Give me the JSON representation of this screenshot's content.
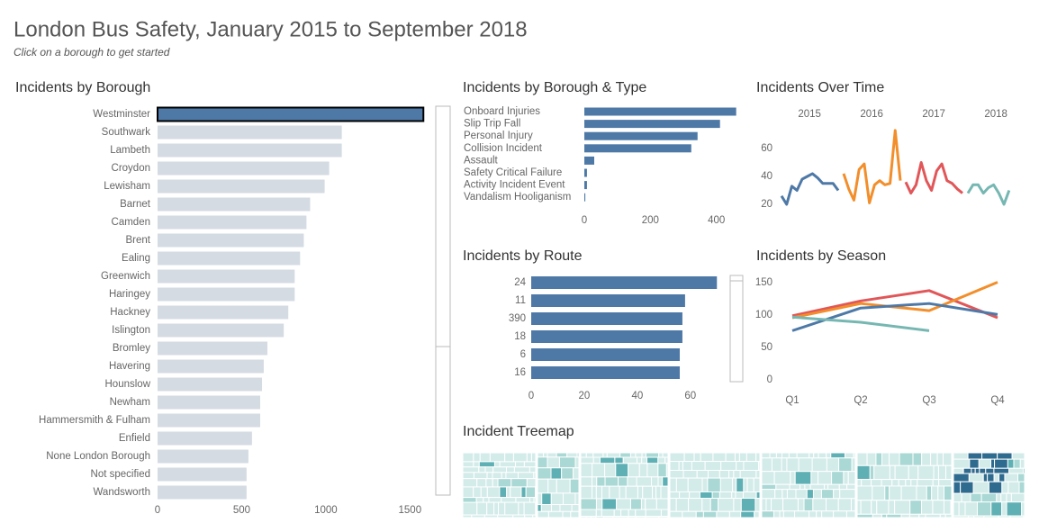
{
  "title": "London Bus Safety, January 2015 to September 2018",
  "subtitle": "Click on a borough to get started",
  "chart_data": [
    {
      "type": "hbar",
      "title": "Incidents by Borough",
      "categories": [
        "Westminster",
        "Southwark",
        "Lambeth",
        "Croydon",
        "Lewisham",
        "Barnet",
        "Camden",
        "Brent",
        "Ealing",
        "Greenwich",
        "Haringey",
        "Hackney",
        "Islington",
        "Bromley",
        "Havering",
        "Hounslow",
        "Newham",
        "Hammersmith & Fulham",
        "Enfield",
        "None London Borough",
        "Not specified",
        "Wandsworth"
      ],
      "values": [
        1580,
        1095,
        1095,
        1020,
        993,
        907,
        885,
        869,
        847,
        815,
        815,
        777,
        750,
        653,
        631,
        621,
        610,
        610,
        561,
        540,
        529,
        529
      ],
      "colors": [
        "#4e79a7",
        "#d4dbe3",
        "#d4dbe3",
        "#d4dbe3",
        "#d4dbe3",
        "#d4dbe3",
        "#d4dbe3",
        "#d4dbe3",
        "#d4dbe3",
        "#d4dbe3",
        "#d4dbe3",
        "#d4dbe3",
        "#d4dbe3",
        "#d4dbe3",
        "#d4dbe3",
        "#d4dbe3",
        "#d4dbe3",
        "#d4dbe3",
        "#d4dbe3",
        "#d4dbe3",
        "#d4dbe3",
        "#d4dbe3"
      ],
      "xlim": [
        0,
        1600
      ],
      "xticks": [
        0,
        500,
        1000,
        1500
      ]
    },
    {
      "type": "hbar",
      "title": "Incidents by Borough & Type",
      "categories": [
        "Onboard Injuries",
        "Slip Trip Fall",
        "Personal Injury",
        "Collision Incident",
        "Assault",
        "Safety Critical Failure",
        "Activity Incident Event",
        "Vandalism Hooliganism"
      ],
      "values": [
        460,
        411,
        343,
        324,
        30,
        8,
        8,
        3
      ],
      "color": "#4e79a7",
      "xlim": [
        0,
        480
      ],
      "xticks": [
        0,
        200,
        400
      ]
    },
    {
      "type": "line",
      "title": "Incidents Over Time",
      "series": [
        {
          "name": "2015",
          "color": "#4e79a7",
          "values": [
            26,
            20,
            33,
            30,
            38,
            40,
            42,
            39,
            35,
            35,
            35,
            30
          ]
        },
        {
          "name": "2016",
          "color": "#f28e2b",
          "values": [
            42,
            31,
            23,
            45,
            49,
            21,
            34,
            37,
            34,
            35,
            73,
            37
          ]
        },
        {
          "name": "2017",
          "color": "#e15759",
          "values": [
            36,
            28,
            34,
            50,
            37,
            30,
            44,
            49,
            37,
            35,
            31,
            28
          ]
        },
        {
          "name": "2018",
          "color": "#76b7b2",
          "values": [
            28,
            34,
            34,
            28,
            32,
            34,
            28,
            20,
            30
          ]
        }
      ],
      "ylim": [
        12,
        80
      ],
      "yticks": [
        20,
        40,
        60
      ]
    },
    {
      "type": "hbar",
      "title": "Incidents by Route",
      "categories": [
        "24",
        "11",
        "390",
        "18",
        "6",
        "16"
      ],
      "values": [
        70,
        58,
        57,
        57,
        56,
        56
      ],
      "color": "#4e79a7",
      "xlim": [
        0,
        75
      ],
      "xticks": [
        0,
        20,
        40,
        60
      ]
    },
    {
      "type": "multiline",
      "title": "Incidents by Season",
      "categories": [
        "Q1",
        "Q2",
        "Q3",
        "Q4"
      ],
      "series": [
        {
          "color": "#e15759",
          "values": [
            99,
            122,
            138,
            96
          ]
        },
        {
          "color": "#f28e2b",
          "values": [
            96,
            118,
            107,
            151
          ]
        },
        {
          "color": "#4e79a7",
          "values": [
            76,
            111,
            118,
            101
          ]
        },
        {
          "color": "#76b7b2",
          "values": [
            97,
            89,
            76,
            null
          ]
        }
      ],
      "ylim": [
        0,
        160
      ],
      "yticks": [
        0,
        50,
        100,
        150
      ]
    },
    {
      "type": "treemap",
      "title": "Incident Treemap"
    }
  ]
}
